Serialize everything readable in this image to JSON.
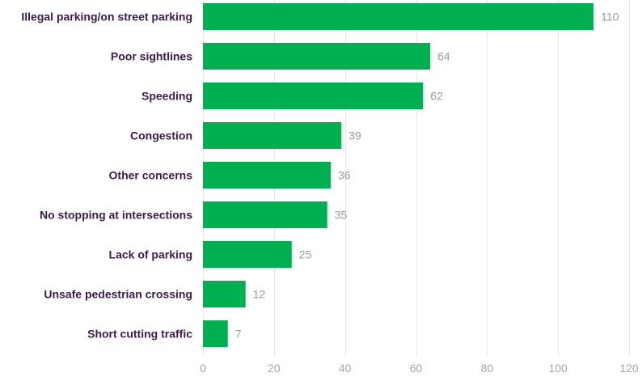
{
  "chart_data": {
    "type": "bar",
    "orientation": "horizontal",
    "categories": [
      "Illegal parking/on street parking",
      "Poor sightlines",
      "Speeding",
      "Congestion",
      "Other concerns",
      "No stopping at intersections",
      "Lack of parking",
      "Unsafe pedestrian crossing",
      "Short cutting traffic"
    ],
    "values": [
      110,
      64,
      62,
      39,
      36,
      35,
      25,
      12,
      7
    ],
    "value_labels": [
      "110",
      "64",
      "62",
      "39",
      "36",
      "35",
      "25",
      "12",
      "7"
    ],
    "xlim": [
      0,
      120
    ],
    "xticks": [
      0,
      20,
      40,
      60,
      80,
      100,
      120
    ],
    "xtick_labels": [
      "0",
      "20",
      "40",
      "60",
      "80",
      "100",
      "120"
    ],
    "grid": true,
    "legend": "none",
    "colors": {
      "bar": "#00b050",
      "category_text": "#3a1a4f",
      "value_text": "#9a9a9a",
      "tick_text": "#a6a6a6",
      "grid": "#e6e6e6"
    }
  }
}
